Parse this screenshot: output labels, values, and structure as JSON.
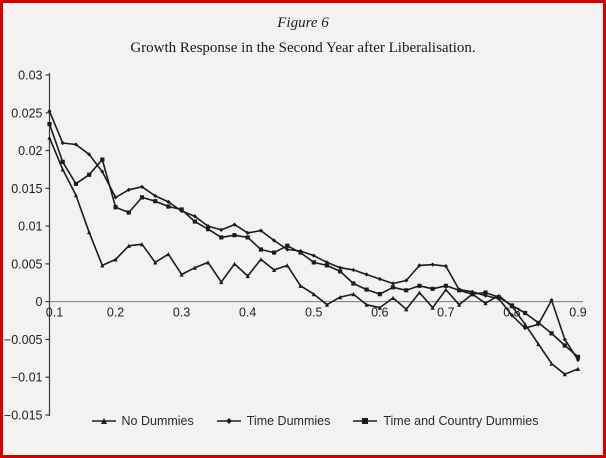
{
  "figure": {
    "title": "Figure 6",
    "subtitle": "Growth Response in the Second Year after Liberalisation."
  },
  "chart_data": {
    "type": "line",
    "title": "Figure 6",
    "subtitle": "Growth Response in the Second Year after Liberalisation.",
    "xlabel": "",
    "ylabel": "",
    "xlim": [
      0.1,
      0.9
    ],
    "ylim": [
      -0.015,
      0.03
    ],
    "grid": false,
    "legend_position": "bottom-center",
    "line_color": "#1c1c1c",
    "zero_line_color": "#787878",
    "axis_color": "#3a3a3a",
    "tick_label_color": "#222222",
    "frame_border_color": "#d40000",
    "x_ticks": [
      0.1,
      0.2,
      0.3,
      0.4,
      0.5,
      0.6,
      0.7,
      0.8,
      0.9
    ],
    "x_tick_labels": [
      "0.1",
      "0.2",
      "0.3",
      "0.4",
      "0.5",
      "0.6",
      "0.7",
      "0.8",
      "0.9"
    ],
    "y_ticks": [
      0.03,
      0.025,
      0.02,
      0.015,
      0.01,
      0.005,
      0,
      -0.005,
      -0.01,
      -0.015
    ],
    "y_tick_labels": [
      "0.03",
      "0.025",
      "0.02",
      "0.015",
      "0.01",
      "0.005",
      "0",
      "−0.005",
      "−0.01",
      "−0.015"
    ],
    "x": [
      0.1,
      0.12,
      0.14,
      0.16,
      0.18,
      0.2,
      0.22,
      0.24,
      0.26,
      0.28,
      0.3,
      0.32,
      0.34,
      0.36,
      0.38,
      0.4,
      0.42,
      0.44,
      0.46,
      0.48,
      0.5,
      0.52,
      0.54,
      0.56,
      0.58,
      0.6,
      0.62,
      0.64,
      0.66,
      0.68,
      0.7,
      0.72,
      0.74,
      0.76,
      0.78,
      0.8,
      0.82,
      0.84,
      0.86,
      0.88,
      0.9
    ],
    "series": [
      {
        "name": "No Dummies",
        "marker": "triangle",
        "values": [
          0.0217,
          0.0175,
          0.0141,
          0.0092,
          0.0048,
          0.0056,
          0.0074,
          0.0076,
          0.0052,
          0.0063,
          0.0036,
          0.0045,
          0.0052,
          0.0026,
          0.005,
          0.0034,
          0.0056,
          0.0042,
          0.0048,
          0.0021,
          0.001,
          -0.0004,
          0.0006,
          0.001,
          -0.0004,
          -0.0008,
          0.0005,
          -0.001,
          0.0012,
          -0.0008,
          0.0016,
          -0.0004,
          0.001,
          -0.0002,
          0.0008,
          -0.0006,
          -0.003,
          -0.0056,
          -0.0082,
          -0.0096,
          -0.0089
        ]
      },
      {
        "name": "Time Dummies",
        "marker": "diamond",
        "values": [
          0.0252,
          0.021,
          0.0208,
          0.0195,
          0.0172,
          0.0138,
          0.0148,
          0.0152,
          0.014,
          0.0132,
          0.012,
          0.0113,
          0.01,
          0.0095,
          0.0102,
          0.0091,
          0.0094,
          0.0081,
          0.0069,
          0.0067,
          0.0061,
          0.0052,
          0.0045,
          0.0042,
          0.0036,
          0.003,
          0.0024,
          0.0028,
          0.0048,
          0.0049,
          0.0047,
          0.0016,
          0.0013,
          0.0008,
          0.0004,
          -0.0018,
          -0.0035,
          -0.003,
          0.0002,
          -0.005,
          -0.0077
        ]
      },
      {
        "name": "Time and Country Dummies",
        "marker": "square",
        "values": [
          0.0235,
          0.0185,
          0.0156,
          0.0168,
          0.0188,
          0.0125,
          0.0118,
          0.0138,
          0.0133,
          0.0126,
          0.0122,
          0.0106,
          0.0096,
          0.0085,
          0.0088,
          0.0085,
          0.0069,
          0.0065,
          0.0074,
          0.0065,
          0.0052,
          0.0048,
          0.004,
          0.0024,
          0.0016,
          0.001,
          0.0019,
          0.0015,
          0.0021,
          0.0017,
          0.0021,
          0.0015,
          0.001,
          0.0012,
          0.0006,
          -0.0005,
          -0.0015,
          -0.0028,
          -0.0042,
          -0.0058,
          -0.0073
        ]
      }
    ]
  }
}
